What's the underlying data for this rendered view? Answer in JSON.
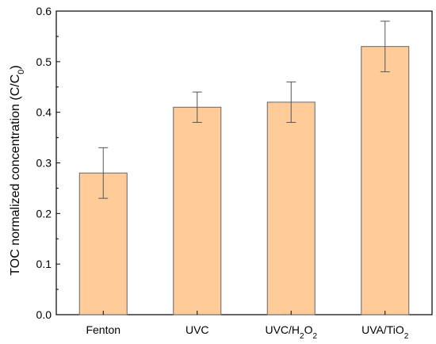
{
  "chart_data": {
    "type": "bar",
    "title": "",
    "xlabel": "",
    "ylabel": "TOC normalized concentration (C/C",
    "ylabel_sub": "0",
    "ylabel_end": ")",
    "ylim": [
      0,
      0.6
    ],
    "yticks": [
      "0.0",
      "0.1",
      "0.2",
      "0.3",
      "0.4",
      "0.5",
      "0.6"
    ],
    "grid": false,
    "categories": [
      {
        "label": "Fenton",
        "sub": "",
        "suffix": ""
      },
      {
        "label": "UVC",
        "sub": "",
        "suffix": ""
      },
      {
        "label": "UVC/H",
        "sub": "2",
        "suffix": "O",
        "sub2": "2"
      },
      {
        "label": "UVA/TiO",
        "sub": "2",
        "suffix": ""
      }
    ],
    "values": [
      0.28,
      0.41,
      0.42,
      0.53
    ],
    "error_low": [
      0.23,
      0.38,
      0.38,
      0.48
    ],
    "error_high": [
      0.33,
      0.44,
      0.46,
      0.58
    ],
    "bar_color": "#FFCC99",
    "bar_stroke": "#666666",
    "error_color": "#555555"
  }
}
